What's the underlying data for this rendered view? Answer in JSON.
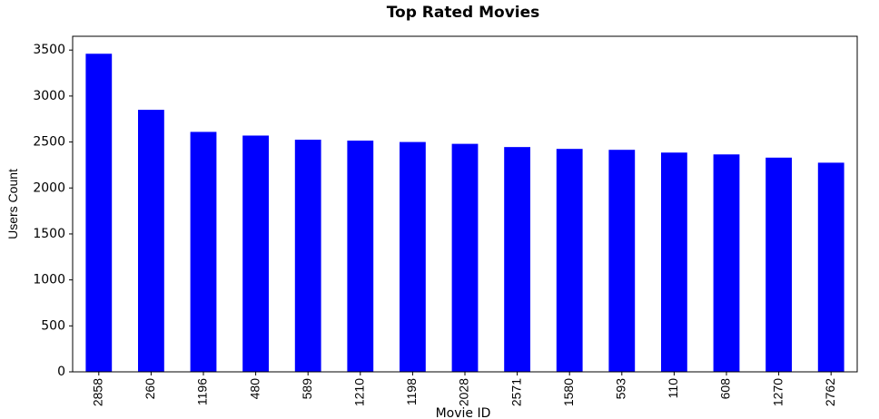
{
  "chart_data": {
    "type": "bar",
    "title": "Top Rated Movies",
    "xlabel": "Movie ID",
    "ylabel": "Users Count",
    "categories": [
      "2858",
      "260",
      "1196",
      "480",
      "589",
      "1210",
      "1198",
      "2028",
      "2571",
      "1580",
      "593",
      "110",
      "608",
      "1270",
      "2762"
    ],
    "values": [
      3460,
      2850,
      2610,
      2570,
      2525,
      2515,
      2500,
      2480,
      2445,
      2425,
      2415,
      2385,
      2365,
      2330,
      2275
    ],
    "ylim": [
      0,
      3650
    ],
    "yticks": [
      0,
      500,
      1000,
      1500,
      2000,
      2500,
      3000,
      3500
    ],
    "bar_color": "#0000ff",
    "grid": false,
    "legend": "none"
  }
}
